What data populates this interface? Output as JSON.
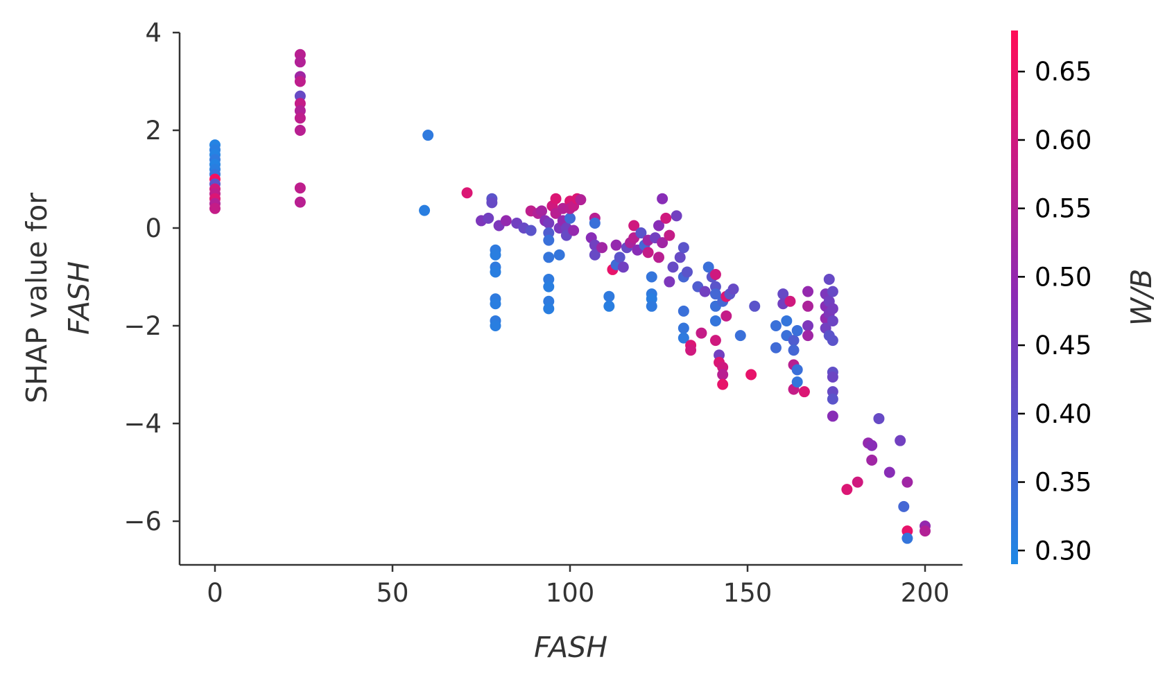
{
  "chart_data": {
    "type": "scatter",
    "xlabel": "FASH",
    "ylabel_line1": "SHAP value for",
    "ylabel_line2": "FASH",
    "xlim": [
      -10,
      210
    ],
    "ylim": [
      -6.9,
      4.1
    ],
    "xticks": [
      0,
      50,
      100,
      150,
      200
    ],
    "xtick_labels": [
      "0",
      "50",
      "100",
      "150",
      "200"
    ],
    "yticks": [
      4,
      2,
      0,
      -2,
      -4,
      -6
    ],
    "ytick_labels": [
      "4",
      "2",
      "0",
      "−2",
      "−4",
      "−6"
    ],
    "colorbar": {
      "label": "W/B",
      "range": [
        0.29,
        0.68
      ],
      "ticks": [
        0.65,
        0.6,
        0.55,
        0.5,
        0.45,
        0.4,
        0.35,
        0.3
      ],
      "tick_labels": [
        "0.65",
        "0.60",
        "0.55",
        "0.50",
        "0.45",
        "0.40",
        "0.35",
        "0.30"
      ],
      "low_color": "#1e88e5",
      "mid_color": "#8b2bb5",
      "high_color": "#ff0d57"
    },
    "points": [
      [
        0,
        1.7,
        0.3
      ],
      [
        0,
        1.6,
        0.31
      ],
      [
        0,
        1.5,
        0.3
      ],
      [
        0,
        1.4,
        0.32
      ],
      [
        0,
        1.3,
        0.3
      ],
      [
        0,
        1.2,
        0.31
      ],
      [
        0,
        1.1,
        0.33
      ],
      [
        0,
        1.0,
        0.66
      ],
      [
        0,
        0.9,
        0.4
      ],
      [
        0,
        0.8,
        0.6
      ],
      [
        0,
        0.7,
        0.57
      ],
      [
        0,
        0.6,
        0.62
      ],
      [
        0,
        0.5,
        0.55
      ],
      [
        0,
        0.4,
        0.58
      ],
      [
        24,
        3.55,
        0.56
      ],
      [
        24,
        3.4,
        0.55
      ],
      [
        24,
        3.1,
        0.52
      ],
      [
        24,
        3.0,
        0.57
      ],
      [
        24,
        2.7,
        0.42
      ],
      [
        24,
        2.55,
        0.58
      ],
      [
        24,
        2.4,
        0.55
      ],
      [
        24,
        2.25,
        0.57
      ],
      [
        24,
        2.0,
        0.56
      ],
      [
        24,
        0.82,
        0.57
      ],
      [
        24,
        0.53,
        0.56
      ],
      [
        60,
        1.9,
        0.32
      ],
      [
        59,
        0.36,
        0.31
      ],
      [
        71,
        0.72,
        0.62
      ],
      [
        75,
        0.15,
        0.46
      ],
      [
        77,
        0.2,
        0.44
      ],
      [
        78,
        0.6,
        0.4
      ],
      [
        78,
        0.52,
        0.42
      ],
      [
        79,
        -0.45,
        0.32
      ],
      [
        79,
        -0.55,
        0.31
      ],
      [
        79,
        -0.8,
        0.32
      ],
      [
        79,
        -0.9,
        0.31
      ],
      [
        79,
        -1.45,
        0.32
      ],
      [
        79,
        -1.55,
        0.31
      ],
      [
        79,
        -1.9,
        0.32
      ],
      [
        79,
        -2.0,
        0.31
      ],
      [
        80,
        0.05,
        0.46
      ],
      [
        82,
        0.15,
        0.5
      ],
      [
        85,
        0.1,
        0.44
      ],
      [
        87,
        0.0,
        0.42
      ],
      [
        89,
        -0.05,
        0.4
      ],
      [
        89,
        0.35,
        0.57
      ],
      [
        91,
        0.3,
        0.55
      ],
      [
        92,
        0.35,
        0.53
      ],
      [
        93,
        0.15,
        0.48
      ],
      [
        94,
        0.1,
        0.45
      ],
      [
        94,
        -0.1,
        0.38
      ],
      [
        94,
        -0.25,
        0.34
      ],
      [
        94,
        -0.6,
        0.33
      ],
      [
        94,
        -1.05,
        0.32
      ],
      [
        94,
        -1.2,
        0.31
      ],
      [
        94,
        -1.5,
        0.32
      ],
      [
        94,
        -1.65,
        0.31
      ],
      [
        95,
        0.45,
        0.6
      ],
      [
        96,
        0.6,
        0.62
      ],
      [
        96,
        0.3,
        0.56
      ],
      [
        97,
        0.0,
        0.46
      ],
      [
        97,
        -0.55,
        0.33
      ],
      [
        98,
        0.4,
        0.55
      ],
      [
        98,
        0.15,
        0.5
      ],
      [
        99,
        0.0,
        0.44
      ],
      [
        99,
        -0.15,
        0.42
      ],
      [
        100,
        0.55,
        0.62
      ],
      [
        100,
        0.2,
        0.35
      ],
      [
        100,
        0.4,
        0.56
      ],
      [
        101,
        0.45,
        0.58
      ],
      [
        101,
        -0.05,
        0.5
      ],
      [
        102,
        0.6,
        0.62
      ],
      [
        103,
        0.58,
        0.55
      ],
      [
        106,
        -0.2,
        0.48
      ],
      [
        107,
        0.2,
        0.56
      ],
      [
        107,
        0.1,
        0.34
      ],
      [
        107,
        -0.35,
        0.44
      ],
      [
        107,
        -0.55,
        0.42
      ],
      [
        109,
        -0.4,
        0.52
      ],
      [
        112,
        -0.85,
        0.64
      ],
      [
        111,
        -1.4,
        0.32
      ],
      [
        111,
        -1.6,
        0.31
      ],
      [
        113,
        -0.35,
        0.5
      ],
      [
        113,
        -0.75,
        0.35
      ],
      [
        114,
        -0.6,
        0.4
      ],
      [
        115,
        -0.8,
        0.44
      ],
      [
        116,
        -0.4,
        0.42
      ],
      [
        117,
        -0.3,
        0.54
      ],
      [
        118,
        0.05,
        0.6
      ],
      [
        118,
        -0.2,
        0.56
      ],
      [
        119,
        -0.45,
        0.48
      ],
      [
        120,
        -0.1,
        0.4
      ],
      [
        121,
        -0.35,
        0.36
      ],
      [
        122,
        -0.5,
        0.58
      ],
      [
        122,
        -0.25,
        0.52
      ],
      [
        123,
        -1.0,
        0.33
      ],
      [
        123,
        -1.35,
        0.32
      ],
      [
        123,
        -1.45,
        0.31
      ],
      [
        123,
        -1.6,
        0.32
      ],
      [
        124,
        -0.2,
        0.44
      ],
      [
        125,
        0.05,
        0.48
      ],
      [
        125,
        -0.6,
        0.56
      ],
      [
        126,
        0.6,
        0.48
      ],
      [
        126,
        -0.3,
        0.52
      ],
      [
        127,
        0.2,
        0.6
      ],
      [
        128,
        -0.15,
        0.58
      ],
      [
        128,
        -1.1,
        0.46
      ],
      [
        129,
        -0.8,
        0.42
      ],
      [
        130,
        0.25,
        0.44
      ],
      [
        131,
        -0.6,
        0.42
      ],
      [
        132,
        -0.4,
        0.4
      ],
      [
        132,
        -1.0,
        0.36
      ],
      [
        132,
        -1.7,
        0.34
      ],
      [
        132,
        -2.05,
        0.33
      ],
      [
        132,
        -2.25,
        0.32
      ],
      [
        133,
        -0.9,
        0.4
      ],
      [
        134,
        -2.4,
        0.62
      ],
      [
        134,
        -2.5,
        0.6
      ],
      [
        136,
        -1.2,
        0.38
      ],
      [
        137,
        -2.15,
        0.58
      ],
      [
        138,
        -1.3,
        0.44
      ],
      [
        139,
        -0.8,
        0.34
      ],
      [
        140,
        -1.0,
        0.4
      ],
      [
        141,
        -0.95,
        0.6
      ],
      [
        141,
        -1.2,
        0.4
      ],
      [
        141,
        -1.35,
        0.36
      ],
      [
        141,
        -1.6,
        0.34
      ],
      [
        141,
        -1.9,
        0.33
      ],
      [
        141,
        -2.3,
        0.6
      ],
      [
        142,
        -2.6,
        0.44
      ],
      [
        142,
        -2.75,
        0.62
      ],
      [
        143,
        -1.5,
        0.36
      ],
      [
        143,
        -2.85,
        0.6
      ],
      [
        143,
        -3.0,
        0.56
      ],
      [
        143,
        -3.2,
        0.64
      ],
      [
        144,
        -1.8,
        0.58
      ],
      [
        144,
        -1.4,
        0.62
      ],
      [
        145,
        -1.35,
        0.4
      ],
      [
        146,
        -1.25,
        0.42
      ],
      [
        148,
        -2.2,
        0.34
      ],
      [
        151,
        -3.0,
        0.64
      ],
      [
        152,
        -1.6,
        0.4
      ],
      [
        158,
        -2.0,
        0.34
      ],
      [
        158,
        -2.45,
        0.35
      ],
      [
        160,
        -1.35,
        0.42
      ],
      [
        160,
        -1.55,
        0.44
      ],
      [
        161,
        -1.9,
        0.33
      ],
      [
        161,
        -2.2,
        0.34
      ],
      [
        162,
        -1.5,
        0.6
      ],
      [
        163,
        -2.3,
        0.38
      ],
      [
        163,
        -2.5,
        0.36
      ],
      [
        163,
        -2.8,
        0.56
      ],
      [
        163,
        -3.3,
        0.58
      ],
      [
        164,
        -2.1,
        0.34
      ],
      [
        164,
        -2.9,
        0.34
      ],
      [
        164,
        -3.15,
        0.33
      ],
      [
        166,
        -3.35,
        0.62
      ],
      [
        167,
        -1.3,
        0.5
      ],
      [
        167,
        -1.6,
        0.54
      ],
      [
        167,
        -2.0,
        0.46
      ],
      [
        167,
        -2.2,
        0.52
      ],
      [
        172,
        -1.35,
        0.46
      ],
      [
        172,
        -1.6,
        0.48
      ],
      [
        172,
        -1.85,
        0.5
      ],
      [
        172,
        -2.05,
        0.44
      ],
      [
        173,
        -1.05,
        0.42
      ],
      [
        173,
        -1.5,
        0.44
      ],
      [
        173,
        -1.75,
        0.46
      ],
      [
        173,
        -2.2,
        0.4
      ],
      [
        174,
        -1.3,
        0.42
      ],
      [
        174,
        -1.65,
        0.45
      ],
      [
        174,
        -1.9,
        0.43
      ],
      [
        174,
        -2.3,
        0.4
      ],
      [
        174,
        -2.95,
        0.41
      ],
      [
        174,
        -3.05,
        0.43
      ],
      [
        174,
        -3.35,
        0.42
      ],
      [
        174,
        -3.5,
        0.4
      ],
      [
        174,
        -3.85,
        0.48
      ],
      [
        178,
        -5.35,
        0.62
      ],
      [
        181,
        -5.2,
        0.6
      ],
      [
        184,
        -4.4,
        0.5
      ],
      [
        185,
        -4.45,
        0.48
      ],
      [
        185,
        -4.75,
        0.52
      ],
      [
        187,
        -3.9,
        0.42
      ],
      [
        190,
        -5.0,
        0.48
      ],
      [
        193,
        -4.35,
        0.44
      ],
      [
        194,
        -5.7,
        0.36
      ],
      [
        195,
        -5.2,
        0.52
      ],
      [
        195,
        -6.2,
        0.64
      ],
      [
        195,
        -6.35,
        0.33
      ],
      [
        200,
        -6.1,
        0.5
      ],
      [
        200,
        -6.2,
        0.55
      ]
    ]
  }
}
